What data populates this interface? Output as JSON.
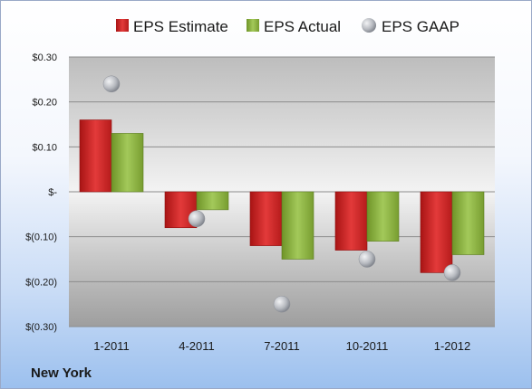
{
  "colors": {
    "estimate": "#d42a2a",
    "actual": "#8cb43c",
    "gaap": "#b9bcc2",
    "grid": "#8c8c8c"
  },
  "footer_label": "New York",
  "chart_data": {
    "type": "bar",
    "categories": [
      "1-2011",
      "4-2011",
      "7-2011",
      "10-2011",
      "1-2012"
    ],
    "series": [
      {
        "name": "EPS Estimate",
        "type": "bar",
        "values": [
          0.16,
          -0.08,
          -0.12,
          -0.13,
          -0.18
        ]
      },
      {
        "name": "EPS Actual",
        "type": "bar",
        "values": [
          0.13,
          -0.04,
          -0.15,
          -0.11,
          -0.14
        ]
      },
      {
        "name": "EPS GAAP",
        "type": "scatter",
        "values": [
          0.24,
          -0.06,
          -0.25,
          -0.15,
          -0.18
        ]
      }
    ],
    "ylim": [
      -0.3,
      0.3
    ],
    "yticks": [
      0.3,
      0.2,
      0.1,
      0.0,
      -0.1,
      -0.2,
      -0.3
    ],
    "ytick_labels": [
      "$0.30",
      "$0.20",
      "$0.10",
      "$-",
      "$(0.10)",
      "$(0.20)",
      "$(0.30)"
    ],
    "grid": true,
    "legend": "top"
  }
}
